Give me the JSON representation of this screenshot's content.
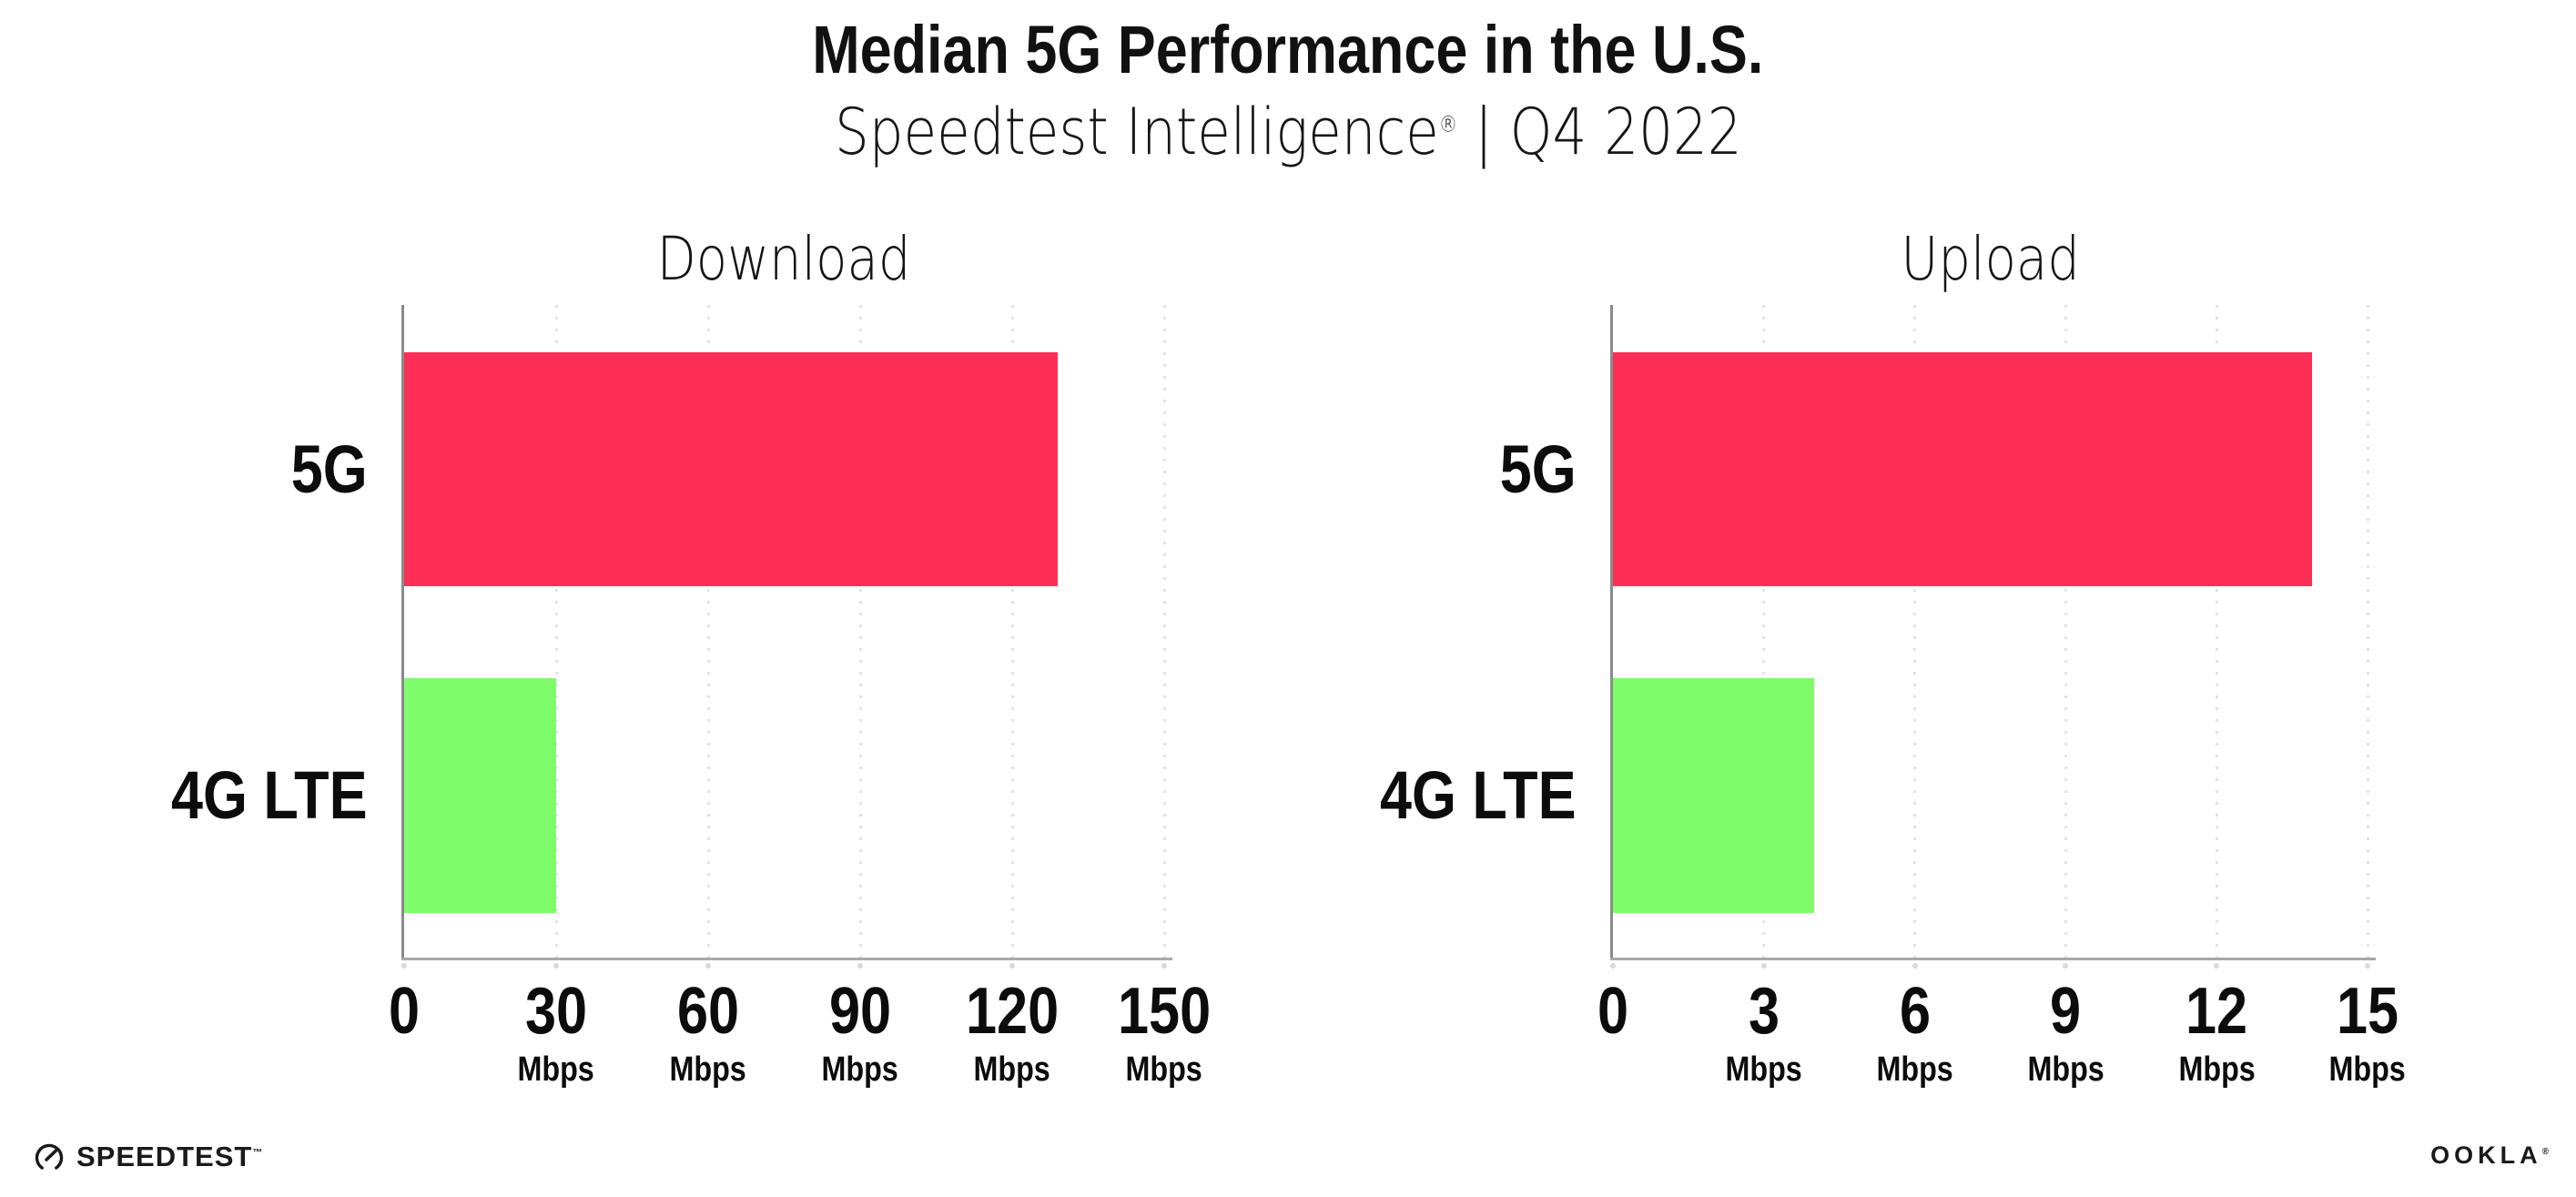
{
  "header": {
    "title": "Median 5G Performance in the U.S.",
    "subtitle_brand": "Speedtest Intelligence",
    "subtitle_reg": "®",
    "subtitle_separator": "|",
    "subtitle_period": "Q4 2022"
  },
  "colors": {
    "bar_5g": "#ff2e56",
    "bar_4g_lte": "#7efc6a",
    "axis_spine": "#8a8a8a",
    "axis_baseline": "#a8a8a8",
    "gridline_dot": "#e3e3ea",
    "tick_dot": "#d9d9e0",
    "text": "#111111"
  },
  "chart_data": [
    {
      "type": "bar",
      "orientation": "horizontal",
      "title": "Download",
      "categories": [
        "5G",
        "4G LTE"
      ],
      "values": [
        129,
        30
      ],
      "unit": "Mbps",
      "tick_unit_label": "Mbps",
      "xlim": [
        0,
        150
      ],
      "xticks": [
        0,
        30,
        60,
        90,
        120,
        150
      ],
      "grid": "vertical-dotted",
      "legend": "none",
      "bar_colors": [
        "#ff2e56",
        "#7efc6a"
      ]
    },
    {
      "type": "bar",
      "orientation": "horizontal",
      "title": "Upload",
      "categories": [
        "5G",
        "4G LTE"
      ],
      "values": [
        13.9,
        4
      ],
      "unit": "Mbps",
      "tick_unit_label": "Mbps",
      "xlim": [
        0,
        15
      ],
      "xticks": [
        0,
        3,
        6,
        9,
        12,
        15
      ],
      "grid": "vertical-dotted",
      "legend": "none",
      "bar_colors": [
        "#ff2e56",
        "#7efc6a"
      ]
    }
  ],
  "footer": {
    "speedtest_logo_text": "SPEEDTEST",
    "speedtest_tm": "™",
    "ookla_logo_text": "OOKLA",
    "ookla_reg": "®"
  }
}
